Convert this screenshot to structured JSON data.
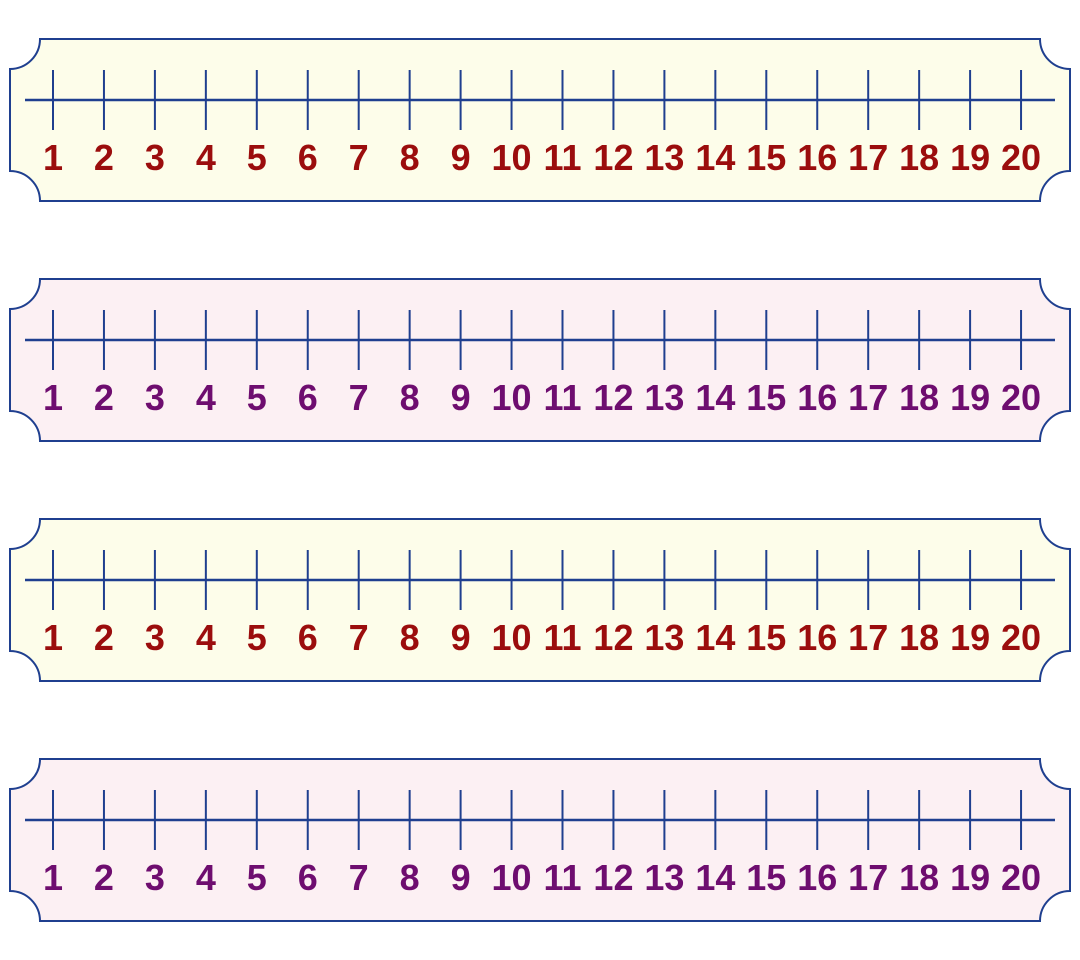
{
  "colors": {
    "outline": "#1f3f8f",
    "line": "#1f3f8f"
  },
  "strips": [
    {
      "name": "number-line-strip-1",
      "fill": "#fdfdea",
      "label_color": "#9b0d0d",
      "labels": [
        "1",
        "2",
        "3",
        "4",
        "5",
        "6",
        "7",
        "8",
        "9",
        "10",
        "11",
        "12",
        "13",
        "14",
        "15",
        "16",
        "17",
        "18",
        "19",
        "20"
      ]
    },
    {
      "name": "number-line-strip-2",
      "fill": "#fcf0f3",
      "label_color": "#6e0d6f",
      "labels": [
        "1",
        "2",
        "3",
        "4",
        "5",
        "6",
        "7",
        "8",
        "9",
        "10",
        "11",
        "12",
        "13",
        "14",
        "15",
        "16",
        "17",
        "18",
        "19",
        "20"
      ]
    },
    {
      "name": "number-line-strip-3",
      "fill": "#fdfdea",
      "label_color": "#9b0d0d",
      "labels": [
        "1",
        "2",
        "3",
        "4",
        "5",
        "6",
        "7",
        "8",
        "9",
        "10",
        "11",
        "12",
        "13",
        "14",
        "15",
        "16",
        "17",
        "18",
        "19",
        "20"
      ]
    },
    {
      "name": "number-line-strip-4",
      "fill": "#fcf0f3",
      "label_color": "#6e0d6f",
      "labels": [
        "1",
        "2",
        "3",
        "4",
        "5",
        "6",
        "7",
        "8",
        "9",
        "10",
        "11",
        "12",
        "13",
        "14",
        "15",
        "16",
        "17",
        "18",
        "19",
        "20"
      ]
    }
  ]
}
